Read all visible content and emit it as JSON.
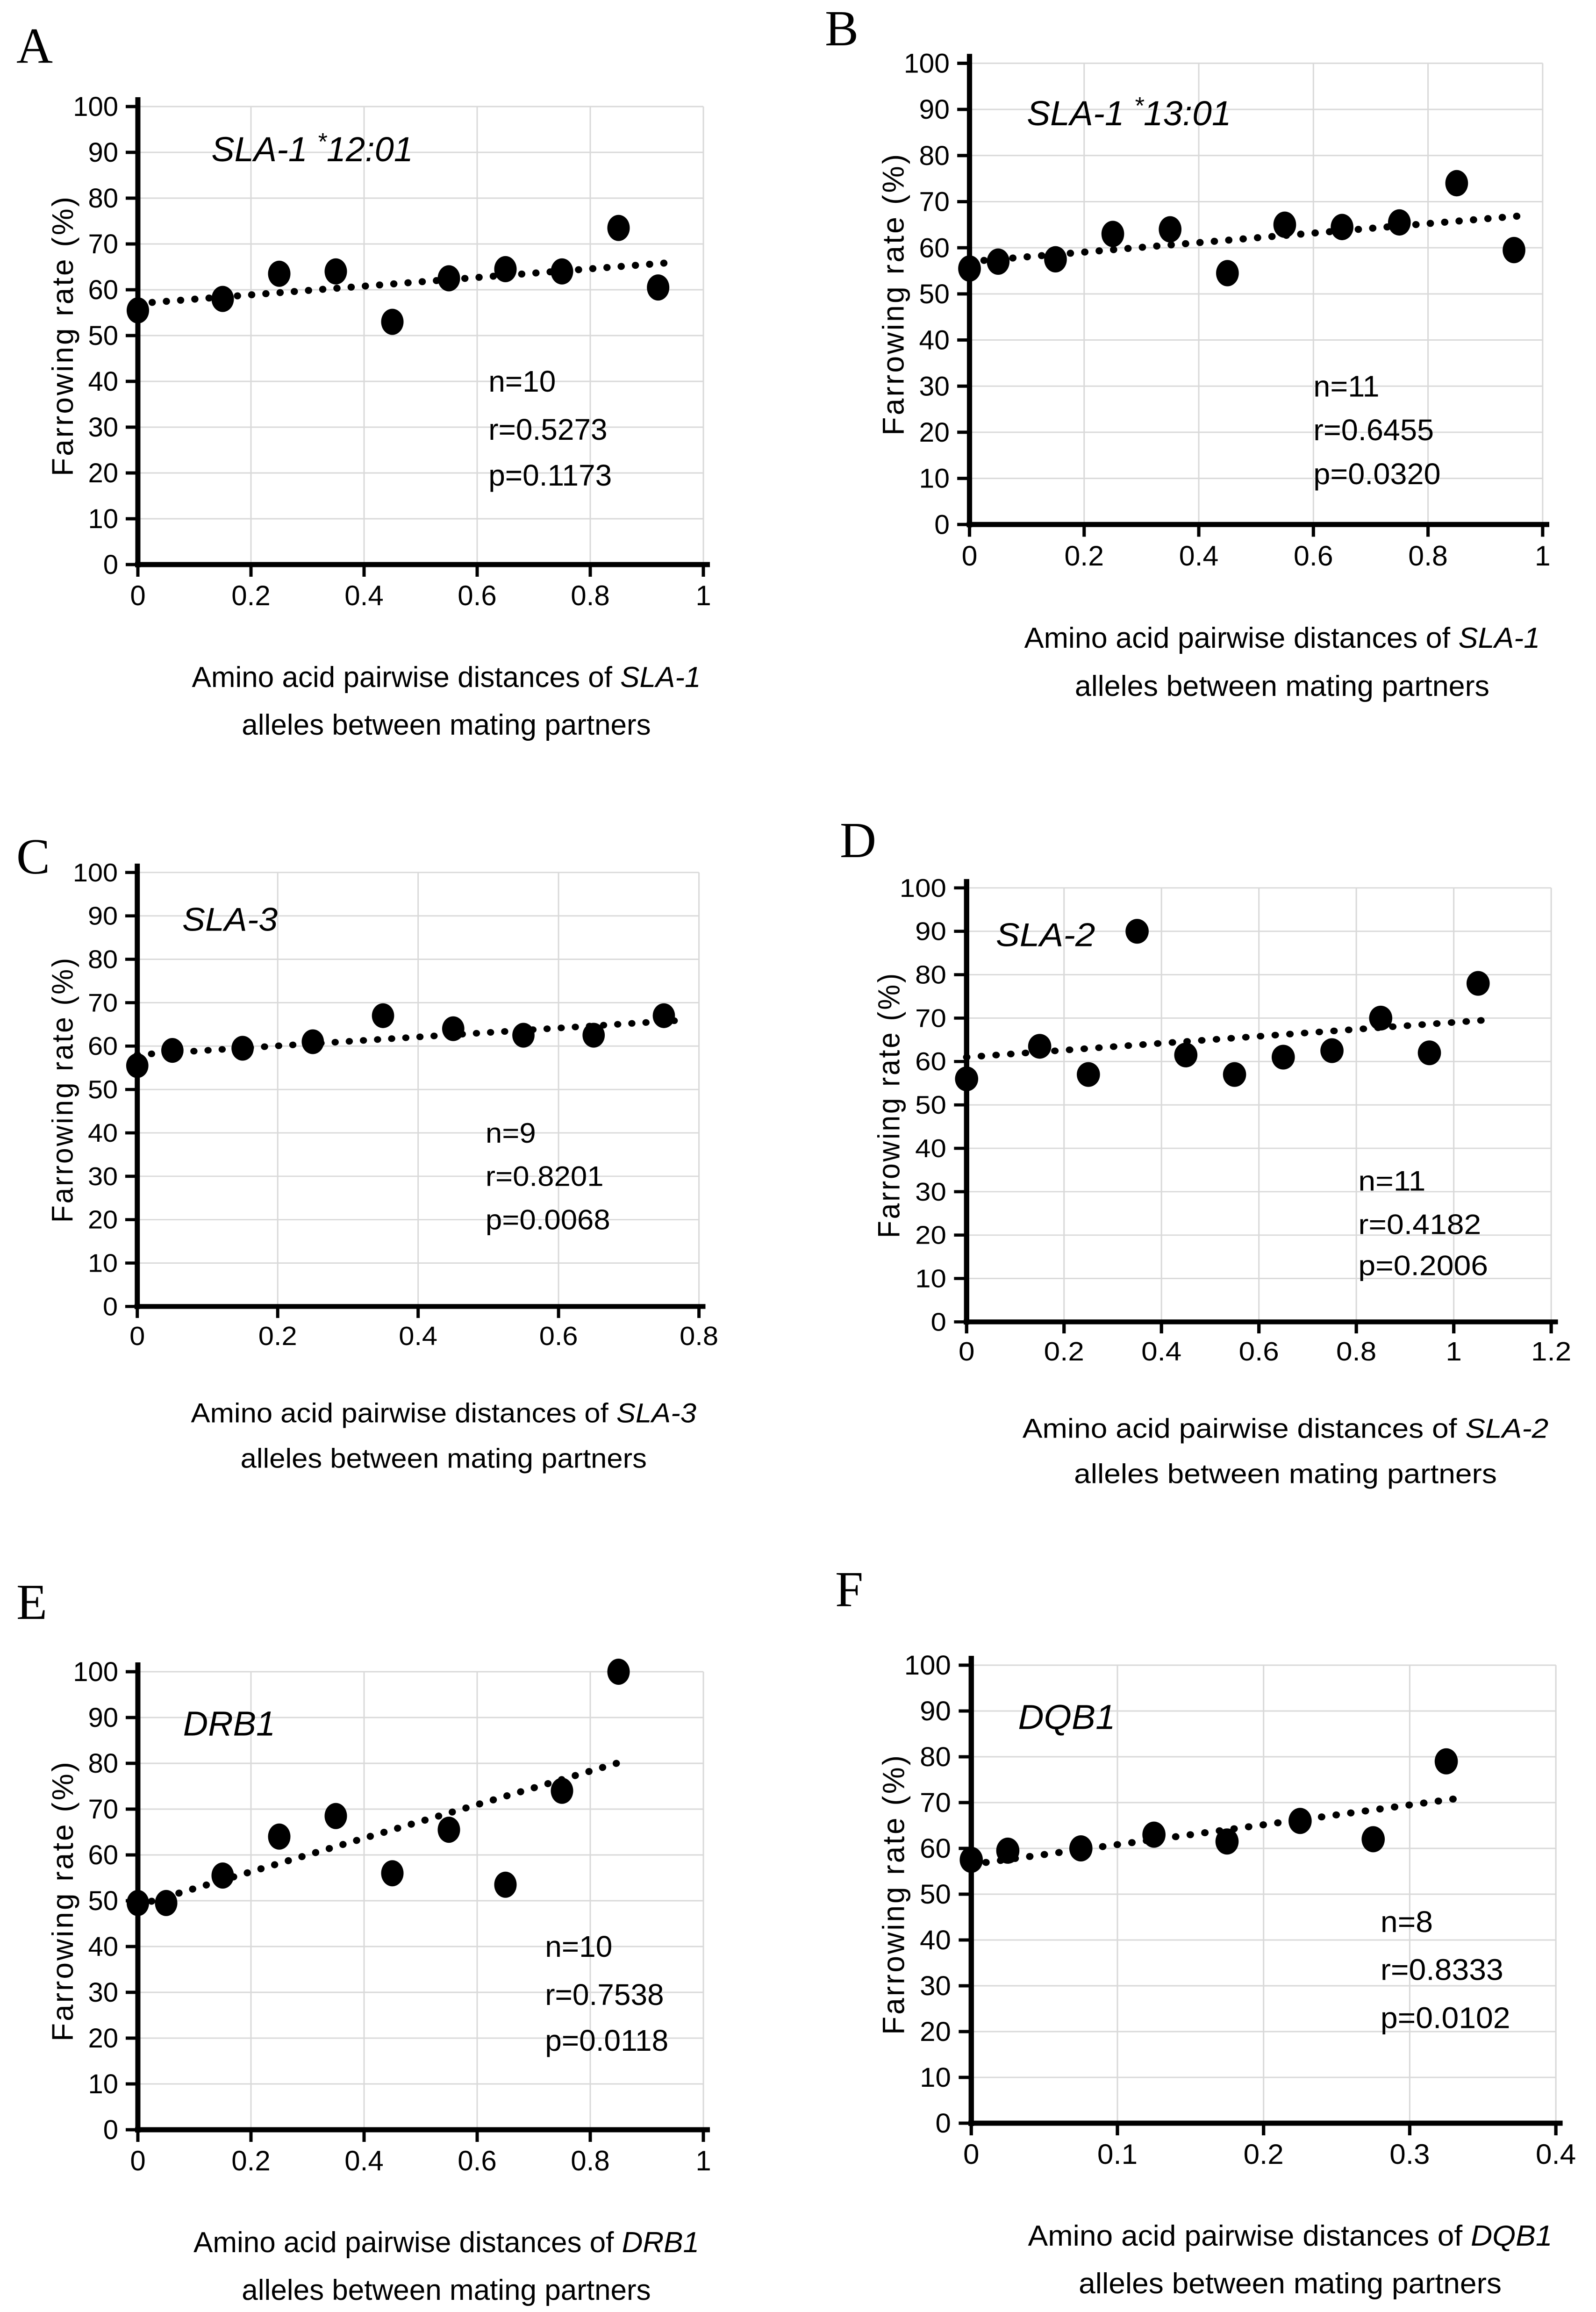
{
  "figure": {
    "y_axis_label": "Farrowing rate (%)",
    "x_caption_prefix": "Amino acid pairwise distances of ",
    "x_caption_line2": "alleles between mating partners",
    "colors": {
      "ink": "#000000",
      "grid": "#d9d9d9",
      "background": "#ffffff"
    }
  },
  "chart_data": [
    {
      "type": "scatter",
      "panel": "A",
      "title": "SLA-1 *12:01",
      "gene": "SLA-1",
      "stats": [
        "n=10",
        "r=0.5273",
        "p=0.1173"
      ],
      "xlim": [
        0,
        1
      ],
      "ylim": [
        0,
        100
      ],
      "x_ticks": [
        "0",
        "0.2",
        "0.4",
        "0.6",
        "0.8",
        "1"
      ],
      "y_ticks": [
        0,
        10,
        20,
        30,
        40,
        50,
        60,
        70,
        80,
        90,
        100
      ],
      "points": [
        [
          0,
          55.5
        ],
        [
          0.15,
          58
        ],
        [
          0.25,
          63.5
        ],
        [
          0.35,
          64
        ],
        [
          0.45,
          53
        ],
        [
          0.55,
          62.5
        ],
        [
          0.65,
          64.5
        ],
        [
          0.75,
          64
        ],
        [
          0.85,
          73.5
        ],
        [
          0.92,
          60.5
        ]
      ],
      "trend": [
        [
          0,
          57
        ],
        [
          0.95,
          66
        ]
      ],
      "title_x_frac": 0.13,
      "title_y": 90.5,
      "ann_x_frac": 0.62,
      "ann_y": [
        40,
        29.5,
        19.5
      ],
      "grid": true,
      "legend": "none"
    },
    {
      "type": "scatter",
      "panel": "B",
      "title": "SLA-1 *13:01",
      "gene": "SLA-1",
      "stats": [
        "n=11",
        "r=0.6455",
        "p=0.0320"
      ],
      "xlim": [
        0,
        1
      ],
      "ylim": [
        0,
        100
      ],
      "x_ticks": [
        "0",
        "0.2",
        "0.4",
        "0.6",
        "0.8",
        "1"
      ],
      "y_ticks": [
        0,
        10,
        20,
        30,
        40,
        50,
        60,
        70,
        80,
        90,
        100
      ],
      "points": [
        [
          0,
          55.5
        ],
        [
          0.05,
          57
        ],
        [
          0.15,
          57.5
        ],
        [
          0.25,
          63
        ],
        [
          0.35,
          64
        ],
        [
          0.45,
          54.5
        ],
        [
          0.55,
          65
        ],
        [
          0.65,
          64.5
        ],
        [
          0.75,
          65.5
        ],
        [
          0.85,
          74
        ],
        [
          0.95,
          59.5
        ]
      ],
      "trend": [
        [
          0,
          57
        ],
        [
          0.97,
          67
        ]
      ],
      "title_x_frac": 0.1,
      "title_y": 89,
      "ann_x_frac": 0.6,
      "ann_y": [
        30,
        20.5,
        11
      ],
      "grid": true,
      "legend": "none"
    },
    {
      "type": "scatter",
      "panel": "C",
      "title": "SLA-3",
      "gene": "SLA-3",
      "stats": [
        "n=9",
        "r=0.8201",
        "p=0.0068"
      ],
      "xlim": [
        0,
        0.8
      ],
      "ylim": [
        0,
        100
      ],
      "x_ticks": [
        "0",
        "0.2",
        "0.4",
        "0.6",
        "0.8"
      ],
      "y_ticks": [
        0,
        10,
        20,
        30,
        40,
        50,
        60,
        70,
        80,
        90,
        100
      ],
      "points": [
        [
          0,
          55.5
        ],
        [
          0.05,
          59
        ],
        [
          0.15,
          59.5
        ],
        [
          0.25,
          61
        ],
        [
          0.35,
          67
        ],
        [
          0.45,
          64
        ],
        [
          0.55,
          62.5
        ],
        [
          0.65,
          62.5
        ],
        [
          0.75,
          67
        ]
      ],
      "trend": [
        [
          0,
          58
        ],
        [
          0.78,
          66
        ]
      ],
      "title_x_frac": 0.08,
      "title_y": 89,
      "ann_x_frac": 0.62,
      "ann_y": [
        40,
        30,
        20
      ],
      "grid": true,
      "legend": "none"
    },
    {
      "type": "scatter",
      "panel": "D",
      "title": "SLA-2",
      "gene": "SLA-2",
      "stats": [
        "n=11",
        "r=0.4182",
        "p=0.2006"
      ],
      "xlim": [
        0,
        1.2
      ],
      "ylim": [
        0,
        100
      ],
      "x_ticks": [
        "0",
        "0.2",
        "0.4",
        "0.6",
        "0.8",
        "1",
        "1.2"
      ],
      "y_ticks": [
        0,
        10,
        20,
        30,
        40,
        50,
        60,
        70,
        80,
        90,
        100
      ],
      "points": [
        [
          0,
          56
        ],
        [
          0.15,
          63.5
        ],
        [
          0.25,
          57
        ],
        [
          0.35,
          90
        ],
        [
          0.45,
          61.5
        ],
        [
          0.55,
          57
        ],
        [
          0.65,
          61
        ],
        [
          0.75,
          62.5
        ],
        [
          0.85,
          70
        ],
        [
          0.95,
          62
        ],
        [
          1.05,
          78
        ]
      ],
      "trend": [
        [
          0,
          61
        ],
        [
          1.06,
          69.5
        ]
      ],
      "title_x_frac": 0.05,
      "title_y": 89,
      "ann_x_frac": 0.67,
      "ann_y": [
        32.5,
        22.5,
        13
      ],
      "grid": true,
      "legend": "none"
    },
    {
      "type": "scatter",
      "panel": "E",
      "title": "DRB1",
      "gene": "DRB1",
      "stats": [
        "n=10",
        "r=0.7538",
        "p=0.0118"
      ],
      "xlim": [
        0,
        1
      ],
      "ylim": [
        0,
        100
      ],
      "x_ticks": [
        "0",
        "0.2",
        "0.4",
        "0.6",
        "0.8",
        "1"
      ],
      "y_ticks": [
        0,
        10,
        20,
        30,
        40,
        50,
        60,
        70,
        80,
        90,
        100
      ],
      "points": [
        [
          0,
          49.5
        ],
        [
          0.05,
          49.5
        ],
        [
          0.15,
          55.5
        ],
        [
          0.25,
          64
        ],
        [
          0.35,
          68.5
        ],
        [
          0.45,
          56
        ],
        [
          0.55,
          65.5
        ],
        [
          0.65,
          53.5
        ],
        [
          0.75,
          74
        ],
        [
          0.85,
          100
        ]
      ],
      "trend": [
        [
          0,
          49
        ],
        [
          0.86,
          80.5
        ]
      ],
      "title_x_frac": 0.08,
      "title_y": 88.5,
      "ann_x_frac": 0.72,
      "ann_y": [
        40,
        29.5,
        19.5
      ],
      "grid": true,
      "legend": "none"
    },
    {
      "type": "scatter",
      "panel": "F",
      "title": "DQB1",
      "gene": "DQB1",
      "stats": [
        "n=8",
        "r=0.8333",
        "p=0.0102"
      ],
      "xlim": [
        0,
        0.4
      ],
      "ylim": [
        0,
        100
      ],
      "x_ticks": [
        "0",
        "0.1",
        "0.2",
        "0.3",
        "0.4"
      ],
      "y_ticks": [
        0,
        10,
        20,
        30,
        40,
        50,
        60,
        70,
        80,
        90,
        100
      ],
      "points": [
        [
          0,
          57.5
        ],
        [
          0.025,
          59.5
        ],
        [
          0.075,
          60
        ],
        [
          0.125,
          63
        ],
        [
          0.175,
          61.5
        ],
        [
          0.225,
          66
        ],
        [
          0.275,
          62
        ],
        [
          0.325,
          79
        ]
      ],
      "trend": [
        [
          0,
          56.5
        ],
        [
          0.335,
          71
        ]
      ],
      "title_x_frac": 0.08,
      "title_y": 88.5,
      "ann_x_frac": 0.7,
      "ann_y": [
        44,
        33.5,
        23
      ],
      "grid": true,
      "legend": "none"
    }
  ]
}
